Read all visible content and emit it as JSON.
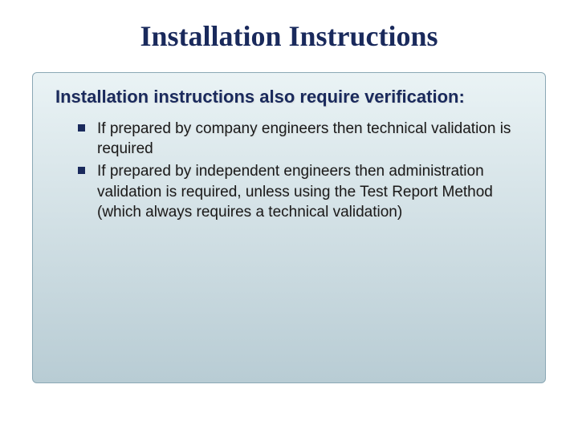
{
  "slide": {
    "title": "Installation Instructions",
    "title_fontsize": 36,
    "title_color": "#1a2a5c",
    "content_box": {
      "background_gradient_start": "#eaf3f5",
      "background_gradient_end": "#b8ccd4",
      "border_color": "#8ba8b5",
      "subtitle": "Installation instructions also require verification:",
      "subtitle_fontsize": 22,
      "subtitle_color": "#1a2a5c",
      "bullets": [
        "If prepared by company engineers then technical validation is required",
        "If prepared by independent engineers then administration validation is required, unless using the Test Report Method (which always requires a technical validation)"
      ],
      "bullet_fontsize": 19,
      "bullet_marker_color": "#1a2a5c",
      "bullet_text_color": "#1a1a1a"
    },
    "background_color": "#ffffff"
  }
}
